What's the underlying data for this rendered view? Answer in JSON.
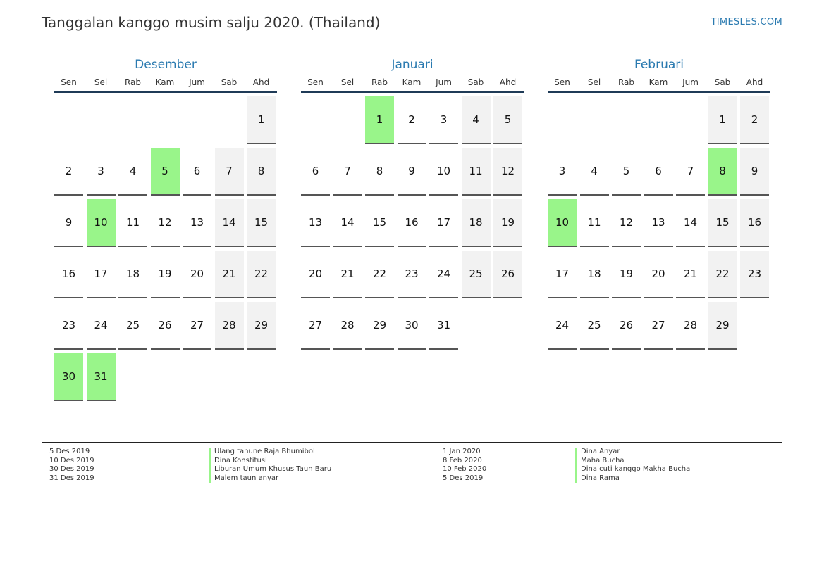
{
  "header": {
    "title": "Tanggalan kanggo musim salju 2020. (Thailand)",
    "brand": "TIMESLES.COM"
  },
  "weekdays": [
    "Sen",
    "Sel",
    "Rab",
    "Kam",
    "Jum",
    "Sab",
    "Ahd"
  ],
  "colors": {
    "holiday": "#99f58a",
    "weekend": "#f2f2f2",
    "accent": "#2a7ab0"
  },
  "months": [
    {
      "name": "Desember",
      "offset": 6,
      "days": 31,
      "holidays": [
        5,
        10,
        30,
        31
      ]
    },
    {
      "name": "Januari",
      "offset": 2,
      "days": 31,
      "holidays": [
        1
      ]
    },
    {
      "name": "Februari",
      "offset": 5,
      "days": 29,
      "holidays": [
        8,
        10
      ]
    }
  ],
  "legend": {
    "left_dates": [
      "5 Des 2019",
      "10 Des 2019",
      "30 Des 2019",
      "31 Des 2019"
    ],
    "left_names": [
      "Ulang tahune Raja Bhumibol",
      "Dina Konstitusi",
      "Liburan Umum Khusus Taun Baru",
      "Malem taun anyar"
    ],
    "right_dates": [
      "1 Jan 2020",
      "8 Feb 2020",
      "10 Feb 2020",
      "5 Des 2019"
    ],
    "right_names": [
      "Dina Anyar",
      "Maha Bucha",
      "Dina cuti kanggo Makha Bucha",
      "Dina Rama"
    ]
  }
}
